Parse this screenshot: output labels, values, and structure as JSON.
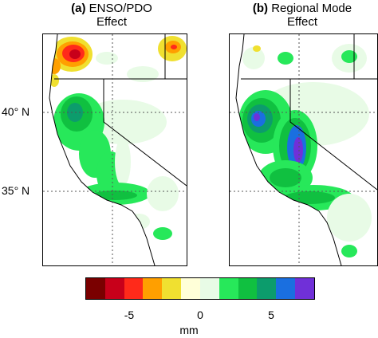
{
  "panels": [
    {
      "letter": "(a)",
      "title_line1": "ENSO/PDO",
      "title_line2": "Effect"
    },
    {
      "letter": "(b)",
      "title_line1": "Regional Mode",
      "title_line2": "Effect"
    }
  ],
  "lat_labels": [
    "40° N",
    "35° N"
  ],
  "colorbar": {
    "colors": [
      "#7a0000",
      "#c8001a",
      "#ff2a1a",
      "#ff9f00",
      "#f0e030",
      "#ffffd8",
      "#e8fbe6",
      "#27e85a",
      "#10c040",
      "#0c9c6c",
      "#1a6fe0",
      "#7030d8"
    ],
    "tick_labels": [
      "-5",
      "0",
      "5"
    ],
    "unit": "mm"
  },
  "colors": {
    "land_fill": "#ffffff",
    "ocean": "#ffffff"
  }
}
